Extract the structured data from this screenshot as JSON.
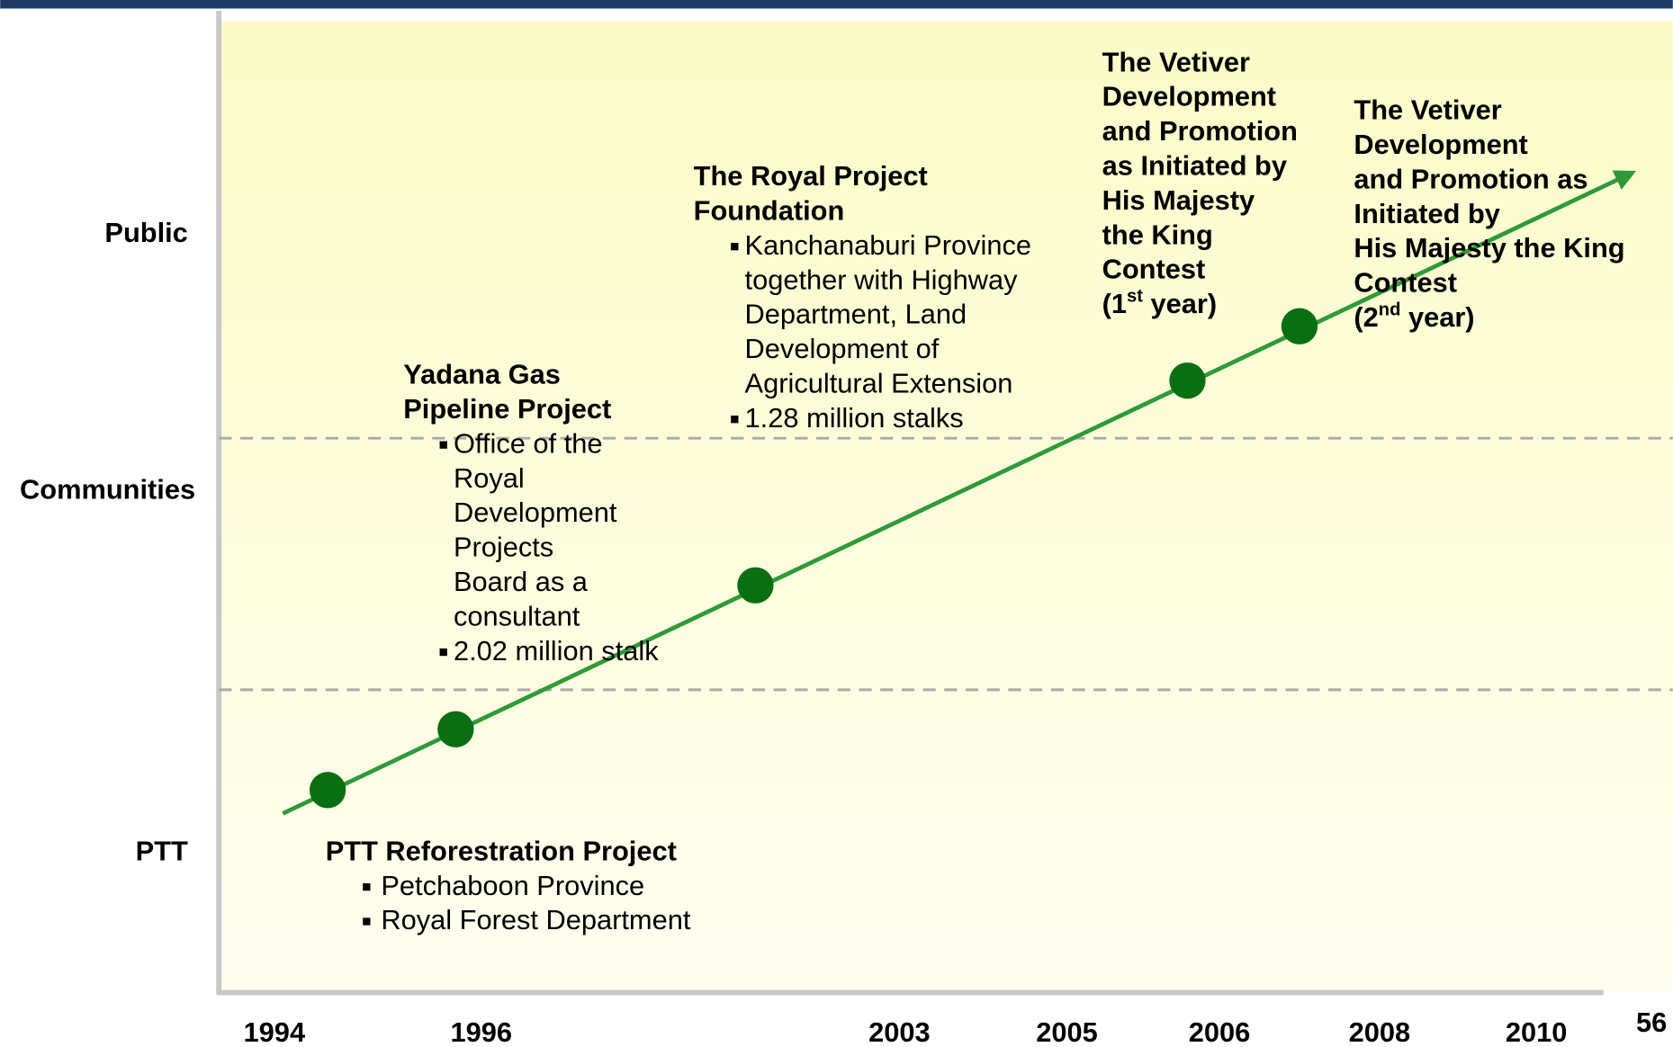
{
  "rows": [
    "Public",
    "Communities",
    "PTT"
  ],
  "years": [
    "1994",
    "1996",
    "2003",
    "2005",
    "2006",
    "2008",
    "2010"
  ],
  "page_number": "56",
  "events": [
    {
      "title": [
        "PTT Reforestration Project"
      ],
      "bullets": [
        [
          "Petchaboon Province"
        ],
        [
          "Royal Forest Department"
        ]
      ]
    },
    {
      "title": [
        "Yadana Gas",
        "Pipeline Project"
      ],
      "bullets": [
        [
          "Office of the",
          "Royal",
          "Development",
          "Projects",
          "Board as a",
          "consultant"
        ],
        [
          "2.02 million stalk"
        ]
      ]
    },
    {
      "title": [
        "The Royal Project",
        "Foundation"
      ],
      "bullets": [
        [
          "Kanchanaburi Province",
          "together with Highway",
          "Department, Land",
          "Development of",
          "Agricultural Extension"
        ],
        [
          "1.28 million stalks"
        ]
      ]
    },
    {
      "title": [
        "The Vetiver",
        "Development",
        "and Promotion",
        "as Initiated by",
        "His Majesty",
        "the King",
        "Contest"
      ],
      "note": {
        "pre": "(1",
        "sup": "st",
        "post": " year)"
      }
    },
    {
      "title": [
        "The Vetiver",
        "Development",
        "and Promotion as",
        "Initiated by",
        "His Majesty the King",
        "Contest"
      ],
      "note": {
        "pre": "(2",
        "sup": "nd",
        "post": "  year)"
      }
    }
  ]
}
